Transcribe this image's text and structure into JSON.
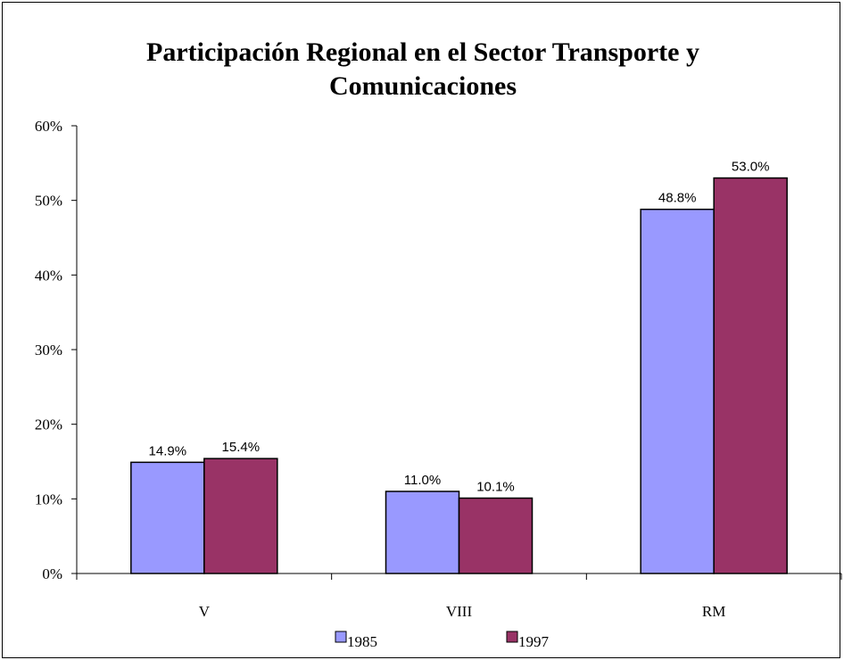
{
  "chart_data": {
    "type": "bar",
    "title": "Participación Regional en el Sector Transporte y Comunicaciones",
    "categories": [
      "V",
      "VIII",
      "RM"
    ],
    "series": [
      {
        "name": "1985",
        "color": "#9999ff",
        "values": [
          14.9,
          11.0,
          48.8
        ],
        "value_labels": [
          "14.9%",
          "11.0%",
          "48.8%"
        ]
      },
      {
        "name": "1997",
        "color": "#993366",
        "values": [
          15.4,
          10.1,
          53.0
        ],
        "value_labels": [
          "15.4%",
          "10.1%",
          "53.0%"
        ]
      }
    ],
    "ylim": [
      0,
      60
    ],
    "yticks": [
      {
        "value": 0,
        "label": "0%"
      },
      {
        "value": 10,
        "label": "10%"
      },
      {
        "value": 20,
        "label": "20%"
      },
      {
        "value": 30,
        "label": "30%"
      },
      {
        "value": 40,
        "label": "40%"
      },
      {
        "value": 50,
        "label": "50%"
      },
      {
        "value": 60,
        "label": "60%"
      }
    ],
    "grid": false,
    "legend": "bottom"
  }
}
